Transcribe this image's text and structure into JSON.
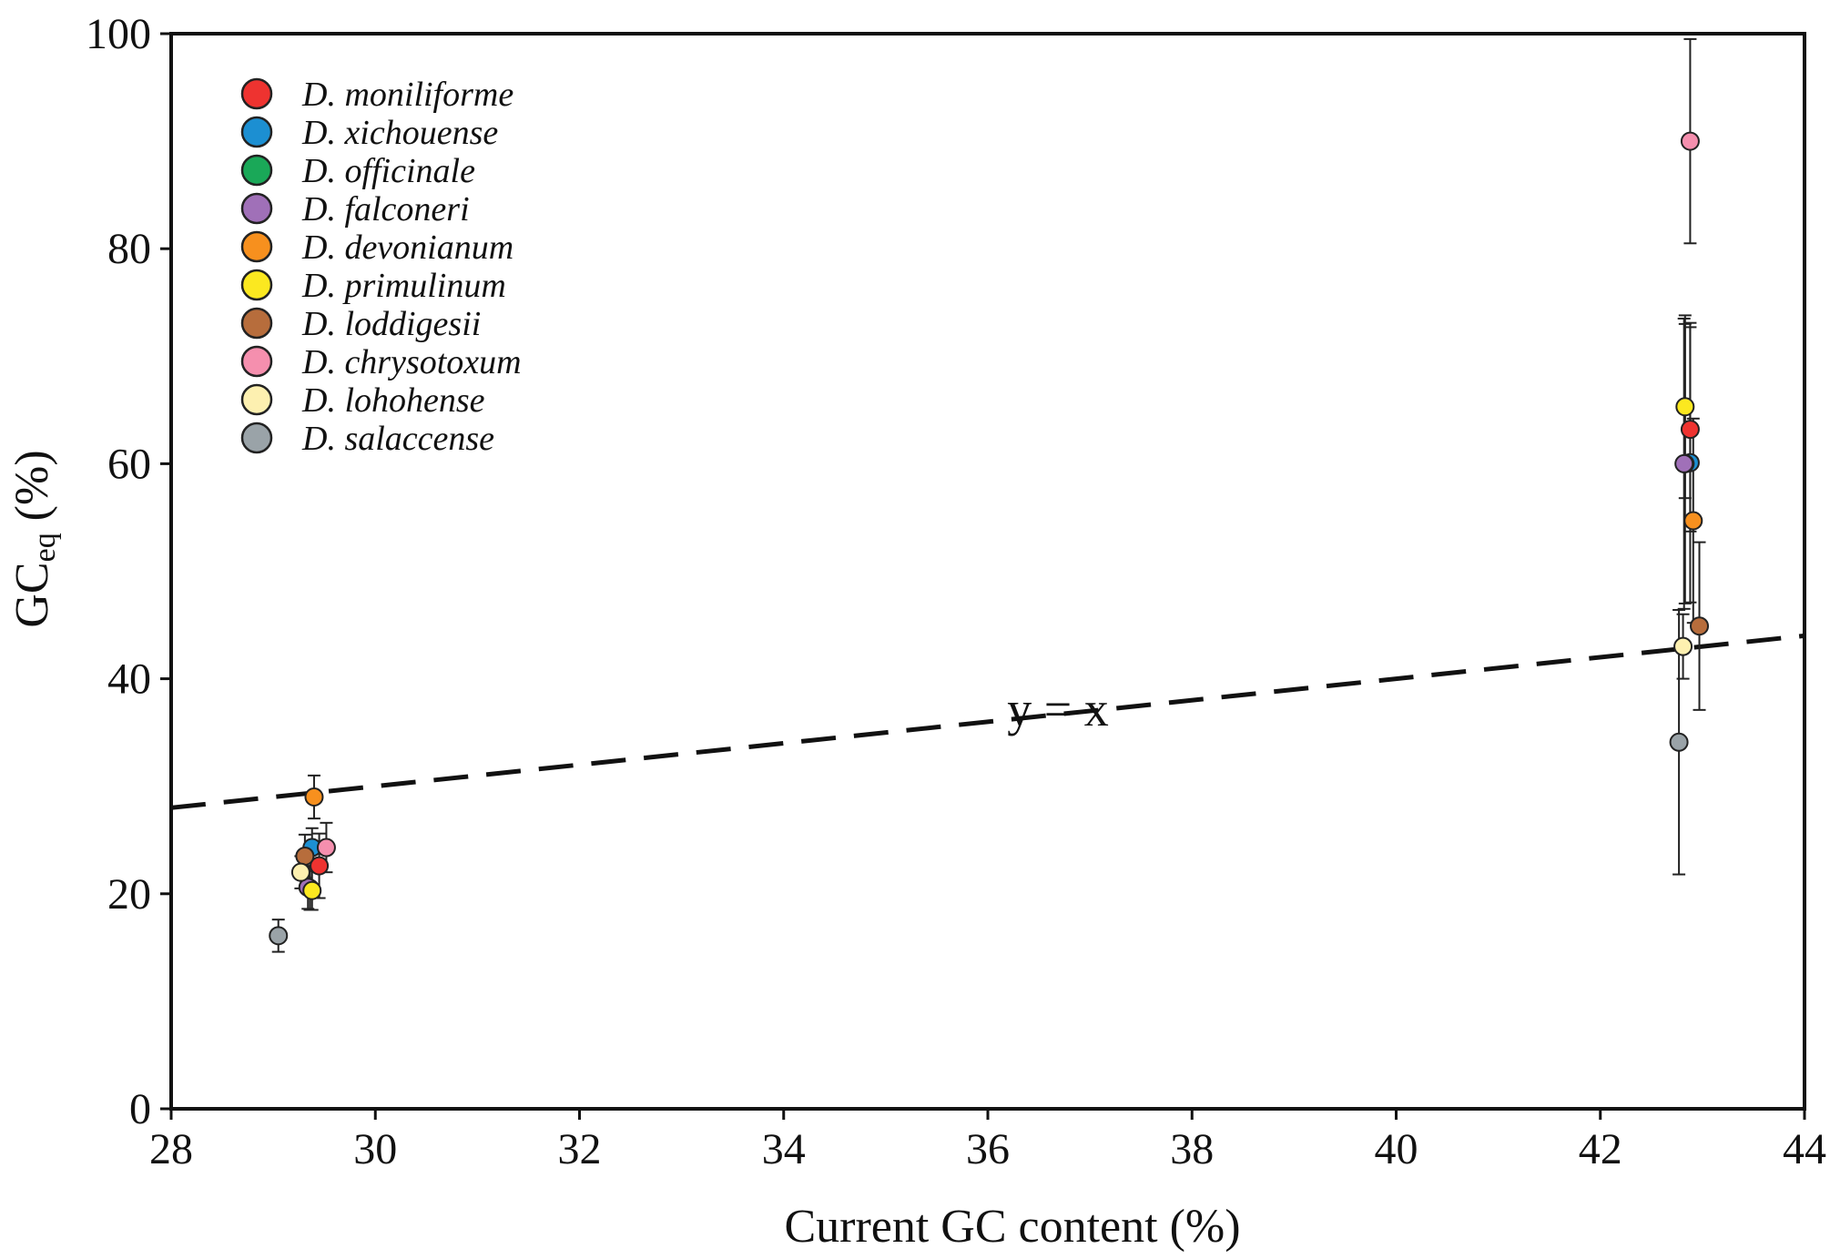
{
  "chart_data": {
    "type": "scatter",
    "xlabel": "Current GC content (%)",
    "ylabel_main": "GC",
    "ylabel_sub": "eq",
    "ylabel_unit": " (%)",
    "xlim": [
      28,
      44
    ],
    "ylim": [
      0,
      100
    ],
    "xticks": [
      28,
      30,
      32,
      34,
      36,
      38,
      40,
      42,
      44
    ],
    "yticks": [
      0,
      20,
      40,
      60,
      80,
      100
    ],
    "legend_position": "top-left",
    "reference_line": {
      "label": "y = x",
      "style": "dashed",
      "color": "#111111"
    },
    "series": [
      {
        "name": "D. moniliforme",
        "color": "#ee3330",
        "points": [
          {
            "x": 29.45,
            "y": 22.6,
            "err": 3.0
          },
          {
            "x": 42.88,
            "y": 63.2,
            "err": 9.5
          }
        ]
      },
      {
        "name": "D. xichouense",
        "color": "#1c8fd2",
        "points": [
          {
            "x": 29.38,
            "y": 24.3,
            "err": 1.8
          },
          {
            "x": 42.88,
            "y": 60.1,
            "err": 13.0
          }
        ]
      },
      {
        "name": "D. officinale",
        "color": "#1aa858",
        "points": [
          {
            "x": 29.36,
            "y": 20.5,
            "err": 2.0
          },
          {
            "x": 42.83,
            "y": 60.0,
            "err": 13.0
          }
        ]
      },
      {
        "name": "D. falconeri",
        "color": "#a070b8",
        "points": [
          {
            "x": 29.34,
            "y": 20.6,
            "err": 2.0
          },
          {
            "x": 42.82,
            "y": 60.0,
            "err": 13.5
          }
        ]
      },
      {
        "name": "D. devonianum",
        "color": "#f7901e",
        "points": [
          {
            "x": 29.4,
            "y": 29.0,
            "err": 2.0
          },
          {
            "x": 42.91,
            "y": 54.7,
            "err": 9.5
          }
        ]
      },
      {
        "name": "D. primulinum",
        "color": "#fbe820",
        "points": [
          {
            "x": 29.38,
            "y": 20.3,
            "err": 1.8
          },
          {
            "x": 42.83,
            "y": 65.3,
            "err": 8.5
          }
        ]
      },
      {
        "name": "D. loddigesii",
        "color": "#b76d3c",
        "points": [
          {
            "x": 29.31,
            "y": 23.5,
            "err": 2.0
          },
          {
            "x": 42.97,
            "y": 44.9,
            "err": 7.8
          }
        ]
      },
      {
        "name": "D. chrysotoxum",
        "color": "#f58fae",
        "points": [
          {
            "x": 29.52,
            "y": 24.3,
            "err": 2.3
          },
          {
            "x": 42.88,
            "y": 90.0,
            "err": 9.5
          }
        ]
      },
      {
        "name": "D. lohohense",
        "color": "#fdf0b0",
        "points": [
          {
            "x": 29.27,
            "y": 22.0,
            "err": 1.5
          },
          {
            "x": 42.81,
            "y": 43.0,
            "err": 3.0
          }
        ]
      },
      {
        "name": "D. salaccense",
        "color": "#9aa3a8",
        "points": [
          {
            "x": 29.05,
            "y": 16.1,
            "err": 1.5
          },
          {
            "x": 42.77,
            "y": 34.1,
            "err": 12.3
          }
        ]
      }
    ]
  }
}
